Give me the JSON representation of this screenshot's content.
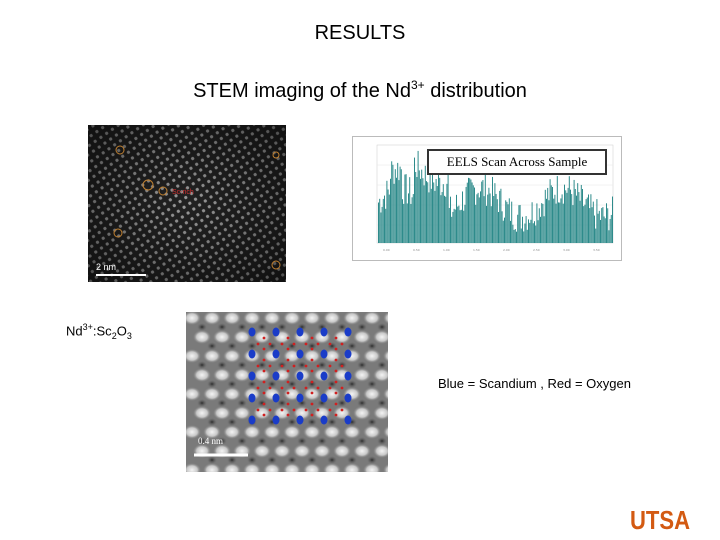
{
  "title": "RESULTS",
  "subtitle": {
    "text": "STEM imaging of the Nd",
    "sup": "3+",
    "suffix": " distribution"
  },
  "stem_image_1": {
    "scale_label": "2 nm",
    "annotation": "Sc-rich"
  },
  "eels_chart": {
    "title": "EELS Scan Across Sample"
  },
  "formula": {
    "a": "Nd",
    "sup": "3+",
    "b": ":Sc",
    "sub1": "2",
    "c": "O",
    "sub2": "3"
  },
  "stem_image_2": {
    "scale_label": "0.4 nm"
  },
  "legend": "Blue = Scandium , Red = Oxygen",
  "logo": "UTSA",
  "colors": {
    "utsa_orange": "#d35a12",
    "scandium": "#1a3cc8",
    "oxygen": "#d02020"
  }
}
